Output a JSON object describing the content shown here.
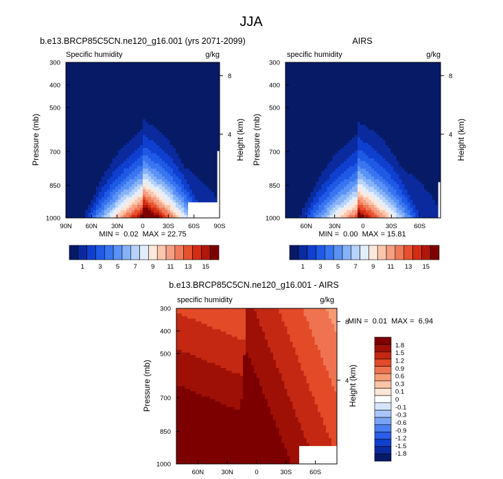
{
  "figure": {
    "title": "JJA",
    "colors": {
      "seq": [
        "#061a66",
        "#0a2a9e",
        "#0f3fcf",
        "#1f5ae6",
        "#3975f0",
        "#5a92f5",
        "#86b2f8",
        "#b7d2fb",
        "#e3eefc",
        "#fde8dc",
        "#fbc6ad",
        "#f6a083",
        "#ef7a59",
        "#e6512f",
        "#d42d14",
        "#b01708",
        "#7d0000"
      ],
      "diff": [
        "#061a66",
        "#0a2a9e",
        "#1040cf",
        "#2a5ee8",
        "#4a7ef2",
        "#7aa3f6",
        "#a9c6f9",
        "#d6e5fc",
        "#ffffff",
        "#fde6d6",
        "#fbc4a6",
        "#f69c76",
        "#ef7350",
        "#e24a28",
        "#c42812",
        "#9e1006",
        "#7d0000"
      ]
    }
  },
  "chart_data": [
    {
      "id": "model",
      "type": "heatmap",
      "title": "b.e13.BRCP85C5CN.ne120_g16.001 (yrs 2071-2099)",
      "left_label": "Specific humidity",
      "right_label": "g/kg",
      "ylabel": "Pressure (mb)",
      "y2label": "Height (km)",
      "pressure_ticks": [
        "300",
        "400",
        "500",
        "700",
        "850",
        "1000"
      ],
      "height_ticks": [
        "8",
        "4"
      ],
      "x_ticks": [
        "90N",
        "60N",
        "30N",
        "0",
        "30S",
        "60S",
        "90S"
      ],
      "stats": "MIN =  0.02  MAX = 22.75",
      "colorbar": {
        "levels": [
          "1",
          "3",
          "5",
          "7",
          "9",
          "11",
          "13",
          "15"
        ]
      },
      "field": {
        "lat_range": [
          90,
          -90
        ],
        "min": 0.02,
        "max": 22.75
      }
    },
    {
      "id": "obs",
      "type": "heatmap",
      "title": "AIRS",
      "left_label": "specific humidity",
      "right_label": "g/kg",
      "ylabel": "Pressure (mb)",
      "y2label": "Height (km)",
      "pressure_ticks": [
        "300",
        "400",
        "500",
        "700",
        "850",
        "1000"
      ],
      "height_ticks": [
        "8",
        "4"
      ],
      "x_ticks": [
        "60N",
        "30N",
        "0",
        "30S",
        "60S"
      ],
      "stats": "MIN =  0.00  MAX = 15.81",
      "colorbar": {
        "levels": [
          "1",
          "3",
          "5",
          "7",
          "9",
          "11",
          "13",
          "15"
        ]
      },
      "field": {
        "lat_range": [
          82,
          -82
        ],
        "min": 0.0,
        "max": 15.81
      }
    },
    {
      "id": "diff",
      "type": "heatmap",
      "title": "b.e13.BRCP85C5CN.ne120_g16.001 - AIRS",
      "left_label": "specific humidity",
      "right_label": "g/kg",
      "ylabel": "Pressure (mb)",
      "y2label": "Height (km)",
      "pressure_ticks": [
        "300",
        "400",
        "500",
        "700",
        "850",
        "1000"
      ],
      "height_ticks": [
        "8",
        "4"
      ],
      "x_ticks": [
        "60N",
        "30N",
        "0",
        "30S",
        "60S"
      ],
      "stats": "MIN =  0.01  MAX =  6.94",
      "colorbar": {
        "levels": [
          "1.8",
          "1.5",
          "1.2",
          "0.9",
          "0.6",
          "0.3",
          "0.1",
          "0",
          "-0.1",
          "-0.3",
          "-0.6",
          "-0.9",
          "-1.2",
          "-1.5",
          "-1.8"
        ]
      },
      "field": {
        "lat_range": [
          82,
          -82
        ],
        "min": 0.01,
        "max": 6.94
      }
    }
  ]
}
